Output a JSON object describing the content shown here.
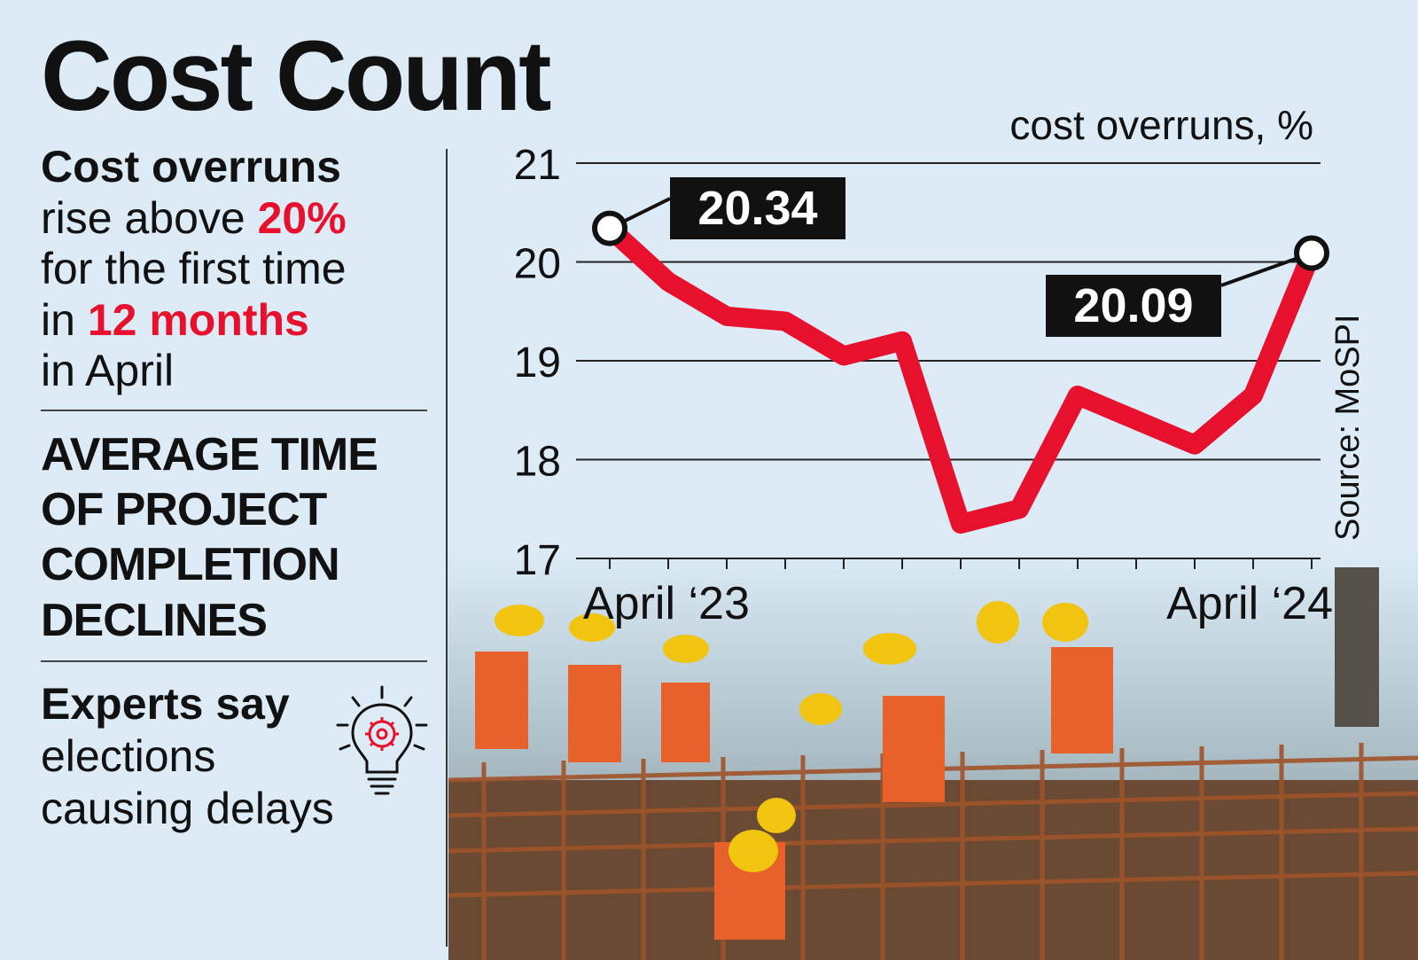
{
  "title": "Cost Count",
  "left": {
    "b1_line1": "Cost overruns",
    "b1_line2_pre": "rise above ",
    "b1_line2_hl": "20%",
    "b1_line3": "for the first time",
    "b1_line4_pre": "in ",
    "b1_line4_hl": "12 months",
    "b1_line5": "in April",
    "b2_lines": [
      "AVERAGE TIME",
      "OF PROJECT",
      "COMPLETION",
      "DECLINES"
    ],
    "b3_line1": "Experts say",
    "b3_line2": "elections",
    "b3_line3": "causing delays"
  },
  "source": "Source: MoSPI",
  "icons": {
    "bulb": "lightbulb-gear-icon",
    "photo": "construction-workers-photo"
  },
  "colors": {
    "line": "#e8112d",
    "highlight": "#e8112d",
    "label_bg": "#111111"
  },
  "chart_data": {
    "type": "line",
    "unit_label": "cost overruns, %",
    "ylim": [
      17,
      21
    ],
    "yticks": [
      17,
      18,
      19,
      20,
      21
    ],
    "x_tick_labels": [
      "April ‘23",
      "April ‘24"
    ],
    "x": [
      "Apr 2023",
      "May 2023",
      "Jun 2023",
      "Jul 2023",
      "Aug 2023",
      "Sep 2023",
      "Oct 2023",
      "Nov 2023",
      "Dec 2023",
      "Jan 2024",
      "Feb 2024",
      "Mar 2024",
      "Apr 2024"
    ],
    "series": [
      {
        "values": [
          20.34,
          19.8,
          19.45,
          19.4,
          19.05,
          19.2,
          17.35,
          17.5,
          18.65,
          18.4,
          18.15,
          18.65,
          20.09
        ]
      }
    ],
    "annotations": [
      {
        "index": 0,
        "text": "20.34"
      },
      {
        "index": 12,
        "text": "20.09"
      }
    ],
    "grid": true
  }
}
